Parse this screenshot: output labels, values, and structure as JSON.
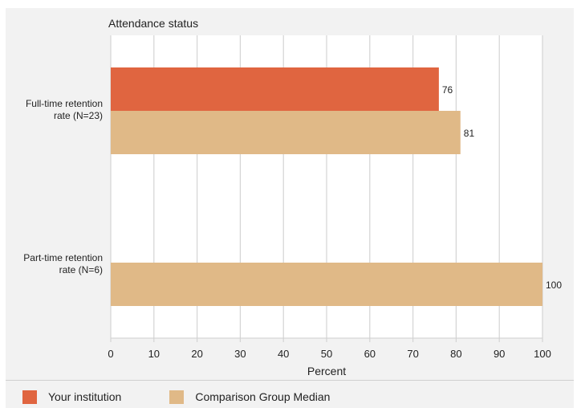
{
  "chart_data": {
    "type": "bar",
    "orientation": "horizontal",
    "title": "Attendance status",
    "xlabel": "Percent",
    "xlim": [
      0,
      100
    ],
    "xticks": [
      0,
      10,
      20,
      30,
      40,
      50,
      60,
      70,
      80,
      90,
      100
    ],
    "categories": [
      "Full-time retention rate (N=23)",
      "Part-time retention rate (N=6)"
    ],
    "category_label_lines": [
      [
        "Full-time retention",
        "rate (N=23)"
      ],
      [
        "Part-time retention",
        "rate (N=6)"
      ]
    ],
    "series": [
      {
        "name": "Your institution",
        "color": "#e06540",
        "values": [
          76,
          null
        ]
      },
      {
        "name": "Comparison Group Median",
        "color": "#e0b987",
        "values": [
          81,
          100
        ]
      }
    ],
    "grid": true,
    "legend_position": "bottom"
  }
}
